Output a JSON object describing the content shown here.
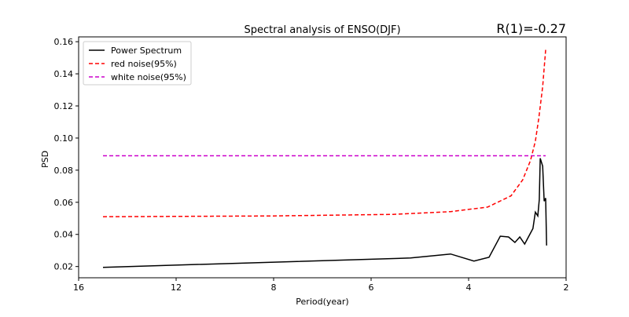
{
  "chart_data": {
    "type": "line",
    "title": "Spectral analysis of ENSO(DJF)",
    "annotation": "R(1)=-0.27",
    "xlabel": "Period(year)",
    "ylabel": "PSD",
    "x_ticks": [
      16,
      12,
      8,
      6,
      4,
      2
    ],
    "y_ticks": [
      0.02,
      0.04,
      0.06,
      0.08,
      0.1,
      0.12,
      0.14,
      0.16
    ],
    "y_tick_labels": [
      "0.02",
      "0.04",
      "0.06",
      "0.08",
      "0.10",
      "0.12",
      "0.14",
      "0.16"
    ],
    "ylim": [
      0.013,
      0.163
    ],
    "xlim": [
      16,
      2
    ],
    "grid": false,
    "legend_position": "top-left",
    "series": [
      {
        "name": "Power Spectrum",
        "color": "#000000",
        "style": "solid",
        "x": [
          15,
          5.19,
          4.37,
          3.89,
          3.58,
          3.35,
          3.18,
          3.05,
          2.95,
          2.85,
          2.68,
          2.63,
          2.58,
          2.55,
          2.53,
          2.48,
          2.45,
          2.42,
          2.4
        ],
        "y": [
          0.0195,
          0.0253,
          0.0278,
          0.0234,
          0.0258,
          0.0389,
          0.0384,
          0.035,
          0.0384,
          0.034,
          0.0437,
          0.0539,
          0.0515,
          0.0617,
          0.0874,
          0.0825,
          0.0607,
          0.0626,
          0.0331
        ]
      },
      {
        "name": "red noise(95%)",
        "color": "#ff0000",
        "style": "dashed",
        "x": [
          15,
          8,
          5.55,
          4.37,
          3.61,
          3.13,
          2.89,
          2.73,
          2.63,
          2.56,
          2.48,
          2.42
        ],
        "y": [
          0.051,
          0.0515,
          0.0525,
          0.0542,
          0.057,
          0.064,
          0.074,
          0.086,
          0.098,
          0.1125,
          0.132,
          0.155
        ]
      },
      {
        "name": "white noise(95%)",
        "color": "#cc00cc",
        "style": "dashed",
        "x": [
          15,
          2.42
        ],
        "y": [
          0.089,
          0.089
        ]
      }
    ]
  }
}
